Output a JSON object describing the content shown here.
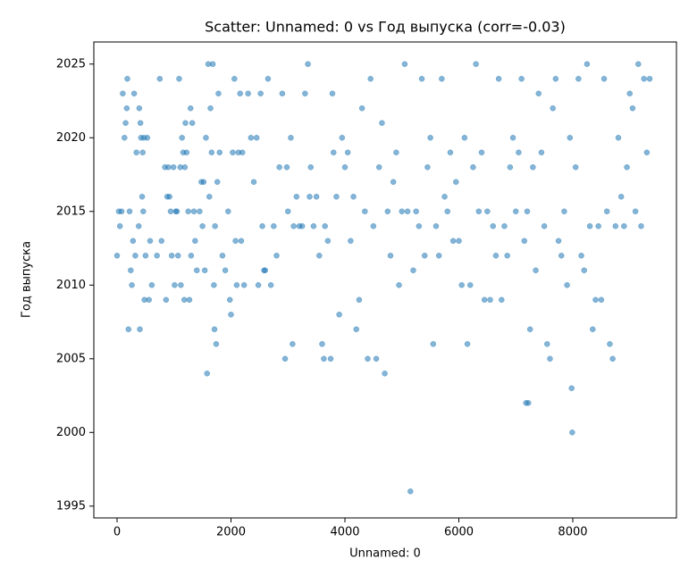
{
  "chart_data": {
    "type": "scatter",
    "title": "Scatter: Unnamed: 0 vs Год выпуска (corr=-0.03)",
    "x_label": "Unnamed: 0",
    "y_label": "Год выпуска",
    "color": "#1f77b4",
    "xlim": [
      -408,
      9820
    ],
    "ylim": [
      1994.2,
      2026.5
    ],
    "xticks": [
      0,
      2000,
      4000,
      6000,
      8000
    ],
    "yticks": [
      1995,
      2000,
      2005,
      2010,
      2015,
      2020,
      2025
    ],
    "grid": false,
    "x": [
      0,
      30,
      50,
      80,
      100,
      130,
      150,
      170,
      180,
      200,
      220,
      240,
      260,
      280,
      300,
      320,
      340,
      380,
      390,
      400,
      410,
      420,
      440,
      450,
      460,
      470,
      480,
      500,
      530,
      560,
      580,
      610,
      700,
      750,
      780,
      840,
      860,
      880,
      900,
      920,
      940,
      960,
      990,
      1010,
      1030,
      1050,
      1070,
      1090,
      1110,
      1120,
      1140,
      1160,
      1180,
      1190,
      1200,
      1220,
      1250,
      1270,
      1290,
      1300,
      1320,
      1350,
      1370,
      1400,
      1450,
      1480,
      1500,
      1520,
      1540,
      1560,
      1580,
      1600,
      1620,
      1640,
      1660,
      1680,
      1700,
      1710,
      1720,
      1740,
      1760,
      1780,
      1800,
      1850,
      1900,
      1950,
      1980,
      2000,
      2030,
      2060,
      2080,
      2100,
      2130,
      2160,
      2180,
      2200,
      2230,
      2300,
      2350,
      2400,
      2450,
      2480,
      2520,
      2550,
      2580,
      2600,
      2650,
      2700,
      2750,
      2800,
      2850,
      2900,
      2950,
      2980,
      3000,
      3050,
      3080,
      3100,
      3150,
      3200,
      3250,
      3300,
      3350,
      3380,
      3400,
      3450,
      3500,
      3550,
      3600,
      3630,
      3650,
      3700,
      3750,
      3780,
      3800,
      3850,
      3900,
      3950,
      4000,
      4050,
      4100,
      4150,
      4200,
      4250,
      4300,
      4350,
      4400,
      4450,
      4500,
      4550,
      4600,
      4650,
      4700,
      4750,
      4800,
      4850,
      4900,
      4950,
      5000,
      5050,
      5100,
      5150,
      5200,
      5250,
      5300,
      5350,
      5400,
      5450,
      5500,
      5550,
      5600,
      5650,
      5700,
      5750,
      5800,
      5850,
      5900,
      5950,
      6000,
      6050,
      6100,
      6150,
      6200,
      6250,
      6300,
      6350,
      6400,
      6450,
      6500,
      6550,
      6600,
      6650,
      6700,
      6750,
      6800,
      6850,
      6900,
      6950,
      7000,
      7050,
      7100,
      7150,
      7180,
      7200,
      7220,
      7250,
      7300,
      7350,
      7400,
      7450,
      7500,
      7550,
      7600,
      7650,
      7700,
      7750,
      7800,
      7850,
      7900,
      7950,
      7980,
      7990,
      8050,
      8100,
      8150,
      8200,
      8250,
      8300,
      8350,
      8400,
      8450,
      8500,
      8550,
      8600,
      8650,
      8700,
      8750,
      8800,
      8850,
      8900,
      8950,
      9000,
      9050,
      9100,
      9150,
      9200,
      9250,
      9300,
      9350
    ],
    "values": [
      2012,
      2015,
      2014,
      2015,
      2023,
      2020,
      2021,
      2022,
      2024,
      2007,
      2015,
      2011,
      2010,
      2013,
      2023,
      2012,
      2019,
      2014,
      2022,
      2007,
      2021,
      2020,
      2016,
      2019,
      2015,
      2020,
      2009,
      2012,
      2020,
      2009,
      2013,
      2010,
      2012,
      2024,
      2013,
      2018,
      2009,
      2016,
      2018,
      2016,
      2015,
      2012,
      2018,
      2010,
      2015,
      2015,
      2012,
      2024,
      2018,
      2010,
      2020,
      2019,
      2009,
      2018,
      2021,
      2019,
      2015,
      2009,
      2022,
      2012,
      2021,
      2015,
      2013,
      2011,
      2015,
      2017,
      2014,
      2017,
      2011,
      2020,
      2004,
      2025,
      2016,
      2022,
      2019,
      2025,
      2010,
      2007,
      2014,
      2006,
      2017,
      2023,
      2019,
      2012,
      2011,
      2015,
      2009,
      2008,
      2019,
      2024,
      2013,
      2010,
      2019,
      2023,
      2013,
      2019,
      2010,
      2023,
      2020,
      2017,
      2020,
      2010,
      2023,
      2014,
      2011,
      2011,
      2024,
      2010,
      2014,
      2012,
      2018,
      2023,
      2005,
      2018,
      2015,
      2020,
      2006,
      2014,
      2016,
      2014,
      2014,
      2023,
      2025,
      2016,
      2018,
      2014,
      2016,
      2012,
      2006,
      2005,
      2014,
      2013,
      2005,
      2023,
      2019,
      2016,
      2008,
      2020,
      2018,
      2019,
      2013,
      2016,
      2007,
      2009,
      2022,
      2015,
      2005,
      2024,
      2014,
      2005,
      2018,
      2021,
      2004,
      2015,
      2012,
      2017,
      2019,
      2010,
      2015,
      2025,
      2015,
      1996,
      2011,
      2015,
      2014,
      2024,
      2012,
      2018,
      2020,
      2006,
      2014,
      2012,
      2024,
      2016,
      2015,
      2019,
      2013,
      2017,
      2013,
      2010,
      2020,
      2006,
      2010,
      2018,
      2025,
      2015,
      2019,
      2009,
      2015,
      2009,
      2014,
      2012,
      2024,
      2009,
      2014,
      2012,
      2018,
      2020,
      2015,
      2019,
      2024,
      2013,
      2002,
      2015,
      2002,
      2007,
      2018,
      2011,
      2023,
      2019,
      2014,
      2006,
      2005,
      2022,
      2024,
      2013,
      2012,
      2015,
      2010,
      2020,
      2003,
      2000,
      2018,
      2024,
      2012,
      2011,
      2025,
      2014,
      2007,
      2009,
      2014,
      2009,
      2024,
      2015,
      2006,
      2005,
      2014,
      2020,
      2016,
      2014,
      2018,
      2023,
      2022,
      2015,
      2025,
      2014,
      2024,
      2019,
      2024
    ]
  }
}
